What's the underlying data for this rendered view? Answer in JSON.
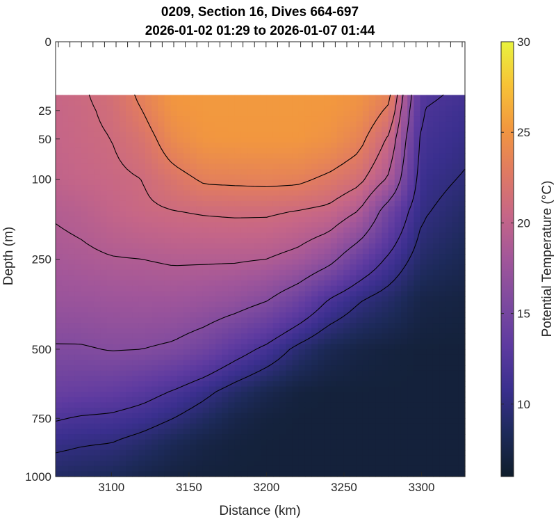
{
  "chart_data": {
    "type": "heatmap",
    "title": "0209, Section 16, Dives 664-697",
    "subtitle": "2026-01-02 01:29 to 2026-01-07 01:44",
    "xlabel": "Distance (km)",
    "ylabel": "Depth (m)",
    "colorbar_label": "Potential Temperature (°C)",
    "xlim": [
      3064,
      3328
    ],
    "ylim": [
      1000,
      0
    ],
    "y_scale": "sqrt",
    "x_ticks": [
      "3100",
      "3150",
      "3200",
      "3250",
      "3300"
    ],
    "y_ticks": [
      "0",
      "25",
      "50",
      "100",
      "250",
      "500",
      "750",
      "1000"
    ],
    "colorbar_ticks": [
      "10",
      "15",
      "20",
      "25",
      "30"
    ],
    "color_range": [
      6,
      30
    ],
    "data_top_depth": 15,
    "contour_levels": [
      10,
      12,
      16,
      19,
      21,
      23
    ],
    "field": {
      "x": [
        3064,
        3080,
        3100,
        3120,
        3140,
        3160,
        3180,
        3200,
        3220,
        3240,
        3260,
        3280,
        3300,
        3328
      ],
      "depth": [
        15,
        25,
        50,
        100,
        150,
        250,
        350,
        500,
        650,
        750,
        850,
        1000
      ],
      "temperature": [
        [
          20.5,
          20.8,
          21.5,
          23.5,
          25.2,
          25.3,
          25.3,
          25.3,
          25.3,
          25.3,
          24.9,
          23.4,
          12.5,
          11.5
        ],
        [
          20.4,
          20.7,
          21.3,
          23.0,
          25.0,
          25.3,
          25.3,
          25.3,
          25.3,
          25.2,
          24.6,
          22.5,
          12.0,
          11.0
        ],
        [
          20.3,
          20.6,
          21.0,
          22.0,
          24.2,
          25.1,
          25.2,
          25.2,
          25.2,
          24.8,
          23.6,
          20.5,
          11.5,
          10.5
        ],
        [
          20.0,
          20.3,
          20.6,
          21.0,
          22.2,
          23.3,
          23.4,
          23.5,
          23.4,
          22.6,
          21.5,
          18.5,
          10.8,
          9.8
        ],
        [
          19.2,
          19.5,
          20.2,
          20.7,
          21.0,
          21.2,
          21.3,
          21.3,
          21.0,
          20.6,
          19.0,
          14.5,
          10.3,
          9.0
        ],
        [
          18.4,
          18.6,
          18.9,
          19.0,
          19.2,
          19.2,
          19.2,
          19.0,
          18.3,
          16.8,
          14.0,
          11.5,
          9.0,
          8.0
        ],
        [
          17.5,
          17.6,
          17.8,
          17.9,
          17.9,
          17.6,
          17.1,
          16.2,
          14.5,
          12.0,
          10.2,
          9.0,
          7.5,
          7.2
        ],
        [
          15.8,
          15.8,
          16.1,
          16.0,
          15.6,
          14.6,
          13.0,
          11.5,
          9.5,
          8.0,
          7.3,
          7.0,
          6.8,
          6.8
        ],
        [
          14.0,
          13.8,
          13.5,
          12.8,
          11.8,
          10.5,
          9.0,
          7.8,
          7.0,
          6.8,
          6.8,
          6.8,
          6.8,
          6.8
        ],
        [
          12.2,
          11.8,
          11.6,
          11.0,
          10.0,
          8.8,
          7.6,
          7.0,
          6.8,
          6.8,
          6.8,
          6.8,
          6.8,
          6.8
        ],
        [
          10.5,
          10.2,
          10.0,
          9.2,
          8.2,
          7.4,
          7.0,
          6.8,
          6.8,
          6.8,
          6.8,
          6.8,
          6.8,
          6.8
        ],
        [
          8.8,
          8.6,
          8.3,
          7.6,
          7.1,
          6.9,
          6.8,
          6.8,
          6.8,
          6.8,
          6.8,
          6.8,
          6.8,
          6.8
        ]
      ]
    },
    "colormap": [
      "#0f1d2b",
      "#1d2a5a",
      "#3a2f8e",
      "#5d3aa0",
      "#7d4a9f",
      "#a1569a",
      "#c66687",
      "#e07a62",
      "#f2973f",
      "#f7c236",
      "#e9f33e"
    ]
  }
}
